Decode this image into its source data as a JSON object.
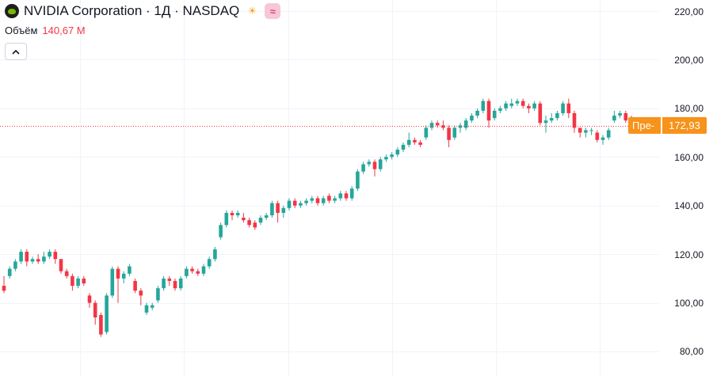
{
  "header": {
    "title": "NVIDIA Corporation · 1Д · NASDAQ",
    "sun_badge": "☀",
    "wave_badge": "≈"
  },
  "volume": {
    "label": "Объём",
    "value": "140,67 M"
  },
  "price_scale": {
    "ticks": [
      "220,00",
      "200,00",
      "180,00",
      "160,00",
      "140,00",
      "120,00",
      "100,00",
      "80,00"
    ]
  },
  "current_price": {
    "tag": "Пре-",
    "value": "172,93",
    "numeric": 172.93
  },
  "colors": {
    "up": "#26a69a",
    "down": "#f23645",
    "marker": "#f7931a"
  },
  "chart_data": {
    "type": "candlestick",
    "ylim": [
      80,
      220
    ],
    "candles": [
      [
        107,
        105,
        111,
        104
      ],
      [
        111,
        114,
        115,
        110
      ],
      [
        114,
        117,
        118,
        113
      ],
      [
        117,
        121,
        122,
        116
      ],
      [
        121,
        117,
        122,
        115
      ],
      [
        117,
        118,
        119,
        116
      ],
      [
        118,
        117,
        120,
        116
      ],
      [
        117,
        119,
        121,
        116
      ],
      [
        119,
        121,
        122,
        118
      ],
      [
        121,
        118,
        122,
        116
      ],
      [
        118,
        113,
        118,
        112
      ],
      [
        113,
        111,
        114,
        110
      ],
      [
        111,
        107,
        112,
        105
      ],
      [
        107,
        110,
        111,
        106
      ],
      [
        110,
        108,
        111,
        107
      ],
      [
        103,
        100,
        104,
        98
      ],
      [
        100,
        94,
        101,
        91
      ],
      [
        95,
        87,
        96,
        86
      ],
      [
        88,
        103,
        104,
        87
      ],
      [
        103,
        114,
        115,
        102
      ],
      [
        114,
        110,
        115,
        100
      ],
      [
        110,
        112,
        113,
        108
      ],
      [
        112,
        115,
        116,
        111
      ],
      [
        109,
        105,
        110,
        104
      ],
      [
        105,
        103,
        106,
        99
      ],
      [
        96,
        99,
        100,
        95
      ],
      [
        98,
        99,
        100,
        97
      ],
      [
        101,
        106,
        107,
        100
      ],
      [
        106,
        110,
        111,
        105
      ],
      [
        110,
        109,
        111,
        107
      ],
      [
        109,
        106,
        110,
        105
      ],
      [
        106,
        110,
        111,
        105
      ],
      [
        111,
        114,
        115,
        110
      ],
      [
        114,
        113,
        115,
        112
      ],
      [
        113,
        112,
        114,
        111
      ],
      [
        112,
        115,
        116,
        111
      ],
      [
        115,
        118,
        119,
        114
      ],
      [
        118,
        122,
        123,
        117
      ],
      [
        127,
        132,
        133,
        126
      ],
      [
        132,
        137,
        138,
        131
      ],
      [
        137,
        136,
        138,
        134
      ],
      [
        136,
        137,
        138,
        135
      ],
      [
        135,
        134,
        137,
        133
      ],
      [
        134,
        132,
        135,
        131
      ],
      [
        133,
        131,
        134,
        130
      ],
      [
        133,
        135,
        136,
        132
      ],
      [
        135,
        136,
        137,
        134
      ],
      [
        136,
        141,
        142,
        135
      ],
      [
        141,
        137,
        142,
        133
      ],
      [
        137,
        139,
        140,
        135
      ],
      [
        139,
        142,
        143,
        138
      ],
      [
        142,
        140,
        143,
        139
      ],
      [
        140,
        141,
        142,
        139
      ],
      [
        141,
        142,
        143,
        140
      ],
      [
        142,
        143,
        144,
        141
      ],
      [
        143,
        141,
        144,
        140
      ],
      [
        141,
        143,
        144,
        140
      ],
      [
        144,
        142,
        145,
        141
      ],
      [
        142,
        143,
        144,
        141
      ],
      [
        143,
        145,
        146,
        142
      ],
      [
        145,
        143,
        146,
        142
      ],
      [
        143,
        147,
        148,
        142
      ],
      [
        147,
        154,
        155,
        146
      ],
      [
        154,
        157,
        158,
        153
      ],
      [
        157,
        158,
        159,
        156
      ],
      [
        158,
        155,
        159,
        152
      ],
      [
        155,
        159,
        160,
        154
      ],
      [
        159,
        160,
        161,
        158
      ],
      [
        160,
        161,
        162,
        159
      ],
      [
        161,
        163,
        164,
        160
      ],
      [
        163,
        165,
        166,
        162
      ],
      [
        165,
        167,
        170,
        164
      ],
      [
        167,
        166,
        168,
        165
      ],
      [
        166,
        165,
        167,
        164
      ],
      [
        168,
        172,
        173,
        167
      ],
      [
        172,
        174,
        175,
        171
      ],
      [
        174,
        173,
        175,
        172
      ],
      [
        173,
        172,
        175,
        171
      ],
      [
        172,
        167,
        173,
        164
      ],
      [
        168,
        172,
        173,
        167
      ],
      [
        172,
        173,
        174,
        170
      ],
      [
        172,
        175,
        176,
        171
      ],
      [
        175,
        177,
        178,
        174
      ],
      [
        177,
        179,
        180,
        176
      ],
      [
        179,
        183,
        184,
        178
      ],
      [
        183,
        175,
        184,
        172
      ],
      [
        176,
        179,
        180,
        175
      ],
      [
        179,
        180,
        181,
        178
      ],
      [
        180,
        182,
        183,
        179
      ],
      [
        181,
        182,
        184,
        180
      ],
      [
        182,
        183,
        184,
        181
      ],
      [
        183,
        181,
        184,
        180
      ],
      [
        181,
        180,
        182,
        178
      ],
      [
        180,
        182,
        183,
        179
      ],
      [
        182,
        174,
        183,
        173
      ],
      [
        174,
        175,
        177,
        170
      ],
      [
        175,
        176,
        178,
        174
      ],
      [
        176,
        178,
        179,
        175
      ],
      [
        178,
        182,
        183,
        177
      ],
      [
        182,
        178,
        184,
        176
      ],
      [
        178,
        172,
        179,
        170
      ],
      [
        172,
        170,
        172,
        168
      ],
      [
        170,
        171,
        172,
        168
      ],
      [
        171,
        171,
        172,
        169
      ],
      [
        170,
        167,
        171,
        166
      ],
      [
        167,
        168,
        169,
        165
      ],
      [
        168,
        171,
        172,
        167
      ],
      [
        175,
        177,
        179,
        174
      ],
      [
        177,
        178,
        179,
        176
      ],
      [
        178,
        175,
        179,
        174
      ],
      [
        176,
        174,
        177,
        173
      ],
      [
        174,
        173,
        175,
        172
      ],
      [
        173,
        172.93,
        174,
        172
      ]
    ]
  }
}
